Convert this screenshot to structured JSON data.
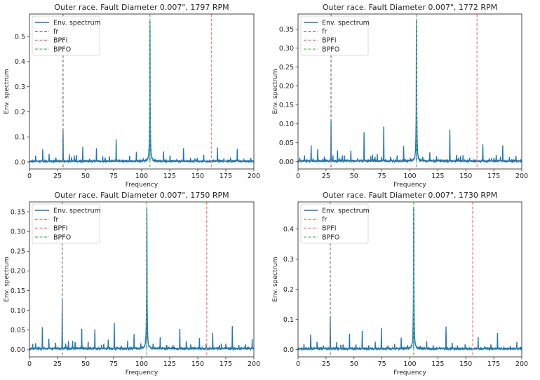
{
  "figure": {
    "layout": "2x2 grid of envelope spectrum subplots"
  },
  "colors": {
    "spectrum": "#1f77b4",
    "fr": "#7f7f7f",
    "bpfi": "#ff7f7f",
    "bpfo": "#6cbf6c",
    "axes": "#333333",
    "text": "#262626"
  },
  "chart_data": [
    {
      "type": "line",
      "title": "Outer race. Fault Diameter 0.007\", 1797 RPM",
      "xlabel": "Frequency",
      "ylabel": "Env. spectrum",
      "xlim": [
        0,
        200
      ],
      "ylim": [
        -0.028,
        0.59
      ],
      "xticks": [
        0,
        25,
        50,
        75,
        100,
        125,
        150,
        175,
        200
      ],
      "xtick_labels": [
        "0",
        "25",
        "50",
        "75",
        "100",
        "125",
        "150",
        "175",
        "200"
      ],
      "yticks": [
        0.0,
        0.1,
        0.2,
        0.3,
        0.4,
        0.5
      ],
      "ytick_labels": [
        "0.0",
        "0.1",
        "0.2",
        "0.3",
        "0.4",
        "0.5"
      ],
      "legend": {
        "placement": "upper-left",
        "entries": [
          "Env. spectrum",
          "fr",
          "BPFI",
          "BPFO"
        ]
      },
      "grid": false,
      "markers": {
        "fr": 29.95,
        "BPFI": 162.2,
        "BPFO": 107.4
      },
      "baseline": 0.003,
      "peaks": [
        [
          5.5,
          0.022
        ],
        [
          11.8,
          0.05
        ],
        [
          17.5,
          0.03
        ],
        [
          23.5,
          0.016
        ],
        [
          29.95,
          0.125
        ],
        [
          35.5,
          0.028
        ],
        [
          37.5,
          0.016
        ],
        [
          40,
          0.022
        ],
        [
          41.8,
          0.027
        ],
        [
          47.5,
          0.055
        ],
        [
          53.5,
          0.008
        ],
        [
          59.7,
          0.055
        ],
        [
          65.3,
          0.023
        ],
        [
          67.5,
          0.016
        ],
        [
          71.3,
          0.022
        ],
        [
          77.3,
          0.09
        ],
        [
          83.2,
          0.006
        ],
        [
          89.3,
          0.025
        ],
        [
          95.3,
          0.04
        ],
        [
          101.5,
          0.01
        ],
        [
          107.4,
          0.56
        ],
        [
          119.5,
          0.04
        ],
        [
          125.3,
          0.026
        ],
        [
          131,
          0.004
        ],
        [
          137.3,
          0.055
        ],
        [
          143.5,
          0.012
        ],
        [
          147.5,
          0.012
        ],
        [
          149.5,
          0.014
        ],
        [
          155.3,
          0.028
        ],
        [
          167.5,
          0.055
        ],
        [
          173.3,
          0.012
        ],
        [
          179.2,
          0.012
        ],
        [
          185.2,
          0.052
        ],
        [
          191.2,
          0.006
        ],
        [
          197.2,
          0.015
        ]
      ]
    },
    {
      "type": "line",
      "title": "Outer race. Fault Diameter 0.007\", 1772 RPM",
      "xlabel": "Frequency",
      "ylabel": "Env. spectrum",
      "xlim": [
        0,
        200
      ],
      "ylim": [
        -0.019,
        0.39
      ],
      "xticks": [
        0,
        25,
        50,
        75,
        100,
        125,
        150,
        175,
        200
      ],
      "xtick_labels": [
        "0",
        "25",
        "50",
        "75",
        "100",
        "125",
        "150",
        "175",
        "200"
      ],
      "yticks": [
        0.0,
        0.05,
        0.1,
        0.15,
        0.2,
        0.25,
        0.3,
        0.35
      ],
      "ytick_labels": [
        "0.00",
        "0.05",
        "0.10",
        "0.15",
        "0.20",
        "0.25",
        "0.30",
        "0.35"
      ],
      "legend": {
        "placement": "upper-left",
        "entries": [
          "Env. spectrum",
          "fr",
          "BPFI",
          "BPFO"
        ]
      },
      "grid": false,
      "markers": {
        "fr": 29.5,
        "BPFI": 160.0,
        "BPFO": 105.9
      },
      "baseline": 0.002,
      "peaks": [
        [
          1.5,
          0.01
        ],
        [
          5.8,
          0.017
        ],
        [
          11.7,
          0.043
        ],
        [
          13.5,
          0.008
        ],
        [
          17.6,
          0.032
        ],
        [
          23.5,
          0.011
        ],
        [
          29.5,
          0.105
        ],
        [
          31.2,
          0.017
        ],
        [
          35.3,
          0.03
        ],
        [
          37.3,
          0.01
        ],
        [
          39.5,
          0.016
        ],
        [
          41.3,
          0.016
        ],
        [
          47.2,
          0.029
        ],
        [
          53.2,
          0.009
        ],
        [
          59,
          0.074
        ],
        [
          65,
          0.014
        ],
        [
          66.6,
          0.017
        ],
        [
          68.8,
          0.011
        ],
        [
          70.8,
          0.02
        ],
        [
          74.8,
          0.012
        ],
        [
          76.6,
          0.093
        ],
        [
          82.6,
          0.011
        ],
        [
          88.6,
          0.016
        ],
        [
          94.4,
          0.04
        ],
        [
          100.3,
          0.006
        ],
        [
          105.9,
          0.375
        ],
        [
          111.5,
          0.009
        ],
        [
          117.8,
          0.025
        ],
        [
          123.8,
          0.012
        ],
        [
          135.7,
          0.085
        ],
        [
          141.7,
          0.018
        ],
        [
          143.4,
          0.008
        ],
        [
          145.4,
          0.013
        ],
        [
          147.5,
          0.015
        ],
        [
          153.4,
          0.008
        ],
        [
          165.2,
          0.046
        ],
        [
          171.1,
          0.008
        ],
        [
          173,
          0.008
        ],
        [
          175.2,
          0.008
        ],
        [
          177.2,
          0.017
        ],
        [
          181,
          0.01
        ],
        [
          183,
          0.043
        ],
        [
          189,
          0.009
        ],
        [
          194.8,
          0.016
        ]
      ]
    },
    {
      "type": "line",
      "title": "Outer race. Fault Diameter 0.007\", 1750 RPM",
      "xlabel": "Frequency",
      "ylabel": "Env. spectrum",
      "xlim": [
        0,
        200
      ],
      "ylim": [
        -0.018,
        0.375
      ],
      "xticks": [
        0,
        25,
        50,
        75,
        100,
        125,
        150,
        175,
        200
      ],
      "xtick_labels": [
        "0",
        "25",
        "50",
        "75",
        "100",
        "125",
        "150",
        "175",
        "200"
      ],
      "yticks": [
        0.0,
        0.05,
        0.1,
        0.15,
        0.2,
        0.25,
        0.3,
        0.35
      ],
      "ytick_labels": [
        "0.00",
        "0.05",
        "0.10",
        "0.15",
        "0.20",
        "0.25",
        "0.30",
        "0.35"
      ],
      "legend": {
        "placement": "upper-left",
        "entries": [
          "Env. spectrum",
          "fr",
          "BPFI",
          "BPFO"
        ]
      },
      "grid": false,
      "markers": {
        "fr": 29.2,
        "BPFI": 158.0,
        "BPFO": 104.6
      },
      "baseline": 0.003,
      "peaks": [
        [
          3,
          0.01
        ],
        [
          5.5,
          0.014
        ],
        [
          11.5,
          0.055
        ],
        [
          17.3,
          0.027
        ],
        [
          23.3,
          0.017
        ],
        [
          29.2,
          0.125
        ],
        [
          32.3,
          0.014
        ],
        [
          34.8,
          0.022
        ],
        [
          38.5,
          0.02
        ],
        [
          40.7,
          0.018
        ],
        [
          46.6,
          0.052
        ],
        [
          52.3,
          0.018
        ],
        [
          58.3,
          0.052
        ],
        [
          64.2,
          0.012
        ],
        [
          66.2,
          0.012
        ],
        [
          70.2,
          0.025
        ],
        [
          75.6,
          0.068
        ],
        [
          81.7,
          0.01
        ],
        [
          87.5,
          0.019
        ],
        [
          93.2,
          0.04
        ],
        [
          99.2,
          0.014
        ],
        [
          104.6,
          0.358
        ],
        [
          110.2,
          0.014
        ],
        [
          116.5,
          0.027
        ],
        [
          122.3,
          0.012
        ],
        [
          128,
          0.007
        ],
        [
          134,
          0.052
        ],
        [
          139.8,
          0.02
        ],
        [
          143.8,
          0.01
        ],
        [
          151.5,
          0.027
        ],
        [
          157.5,
          0.012
        ],
        [
          163.3,
          0.043
        ],
        [
          169.3,
          0.01
        ],
        [
          171,
          0.011
        ],
        [
          175,
          0.014
        ],
        [
          180.8,
          0.06
        ],
        [
          186.6,
          0.008
        ],
        [
          192.6,
          0.011
        ],
        [
          198.5,
          0.022
        ]
      ]
    },
    {
      "type": "line",
      "title": "Outer race. Fault Diameter 0.007\", 1730 RPM",
      "xlabel": "Frequency",
      "ylabel": "Env. spectrum",
      "xlim": [
        0,
        200
      ],
      "ylim": [
        -0.024,
        0.49
      ],
      "xticks": [
        0,
        25,
        50,
        75,
        100,
        125,
        150,
        175,
        200
      ],
      "xtick_labels": [
        "0",
        "25",
        "50",
        "75",
        "100",
        "125",
        "150",
        "175",
        "200"
      ],
      "yticks": [
        0.0,
        0.1,
        0.2,
        0.3,
        0.4
      ],
      "ytick_labels": [
        "0.0",
        "0.1",
        "0.2",
        "0.3",
        "0.4"
      ],
      "legend": {
        "placement": "upper-left",
        "entries": [
          "Env. spectrum",
          "fr",
          "BPFI",
          "BPFO"
        ]
      },
      "grid": false,
      "markers": {
        "fr": 28.8,
        "BPFI": 156.1,
        "BPFO": 103.4
      },
      "baseline": 0.003,
      "peaks": [
        [
          5.3,
          0.017
        ],
        [
          11.3,
          0.05
        ],
        [
          17,
          0.023
        ],
        [
          22.7,
          0.01
        ],
        [
          28.8,
          0.11
        ],
        [
          34.5,
          0.02
        ],
        [
          38.3,
          0.015
        ],
        [
          40.3,
          0.017
        ],
        [
          46,
          0.051
        ],
        [
          51.8,
          0.016
        ],
        [
          57.4,
          0.062
        ],
        [
          63.2,
          0.012
        ],
        [
          69,
          0.022
        ],
        [
          74.5,
          0.068
        ],
        [
          80.4,
          0.01
        ],
        [
          86.3,
          0.019
        ],
        [
          92.2,
          0.04
        ],
        [
          98,
          0.01
        ],
        [
          103.4,
          0.475
        ],
        [
          109.2,
          0.008
        ],
        [
          115,
          0.025
        ],
        [
          120.8,
          0.014
        ],
        [
          126.6,
          0.008
        ],
        [
          132.3,
          0.077
        ],
        [
          137.8,
          0.022
        ],
        [
          142.5,
          0.01
        ],
        [
          149.4,
          0.016
        ],
        [
          161,
          0.04
        ],
        [
          166.8,
          0.008
        ],
        [
          172.4,
          0.016
        ],
        [
          178.3,
          0.055
        ],
        [
          184,
          0.006
        ],
        [
          189.8,
          0.01
        ],
        [
          195.6,
          0.022
        ]
      ]
    }
  ]
}
